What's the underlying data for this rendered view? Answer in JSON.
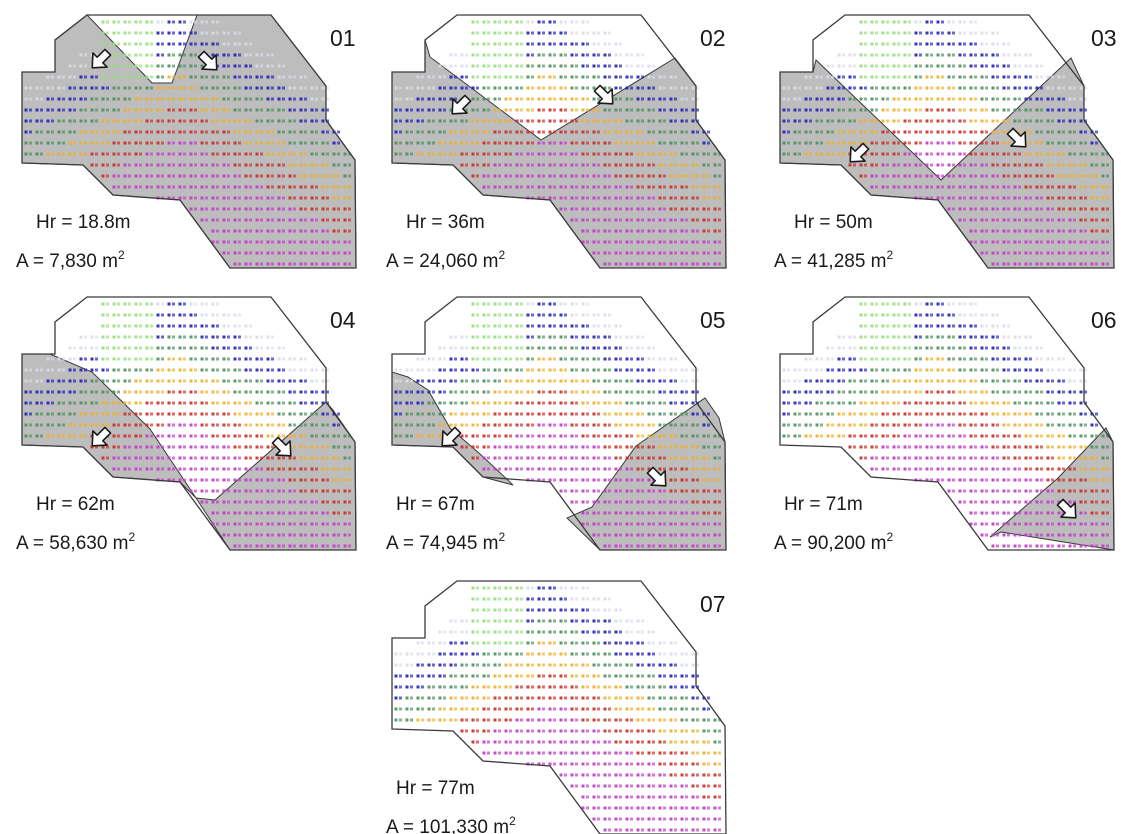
{
  "colors": {
    "excavated": "#bdbdbd",
    "outline": "#3a3a3a",
    "dot_palette": [
      "#f3f3f3",
      "#92df7b",
      "#dadde8",
      "#1f22b8",
      "#4b8f5b",
      "#f0b028",
      "#cc2b23",
      "#c338c9"
    ]
  },
  "icons": {
    "direction": "arrow-outline-icon"
  },
  "panels": [
    {
      "number": "01",
      "hr": "Hr = 18.8m",
      "area": "A = 7,830 m",
      "unit_exp": "2"
    },
    {
      "number": "02",
      "hr": "Hr = 36m",
      "area": "A = 24,060 m",
      "unit_exp": "2"
    },
    {
      "number": "03",
      "hr": "Hr = 50m",
      "area": "A = 41,285 m",
      "unit_exp": "2"
    },
    {
      "number": "04",
      "hr": "Hr = 62m",
      "area": "A = 58,630 m",
      "unit_exp": "2"
    },
    {
      "number": "05",
      "hr": "Hr = 67m",
      "area": "A = 74,945 m",
      "unit_exp": "2"
    },
    {
      "number": "06",
      "hr": "Hr = 71m",
      "area": "A = 90,200 m",
      "unit_exp": "2"
    },
    {
      "number": "07",
      "hr": "Hr = 77m",
      "area": "A = 101,330 m",
      "unit_exp": "2"
    }
  ]
}
